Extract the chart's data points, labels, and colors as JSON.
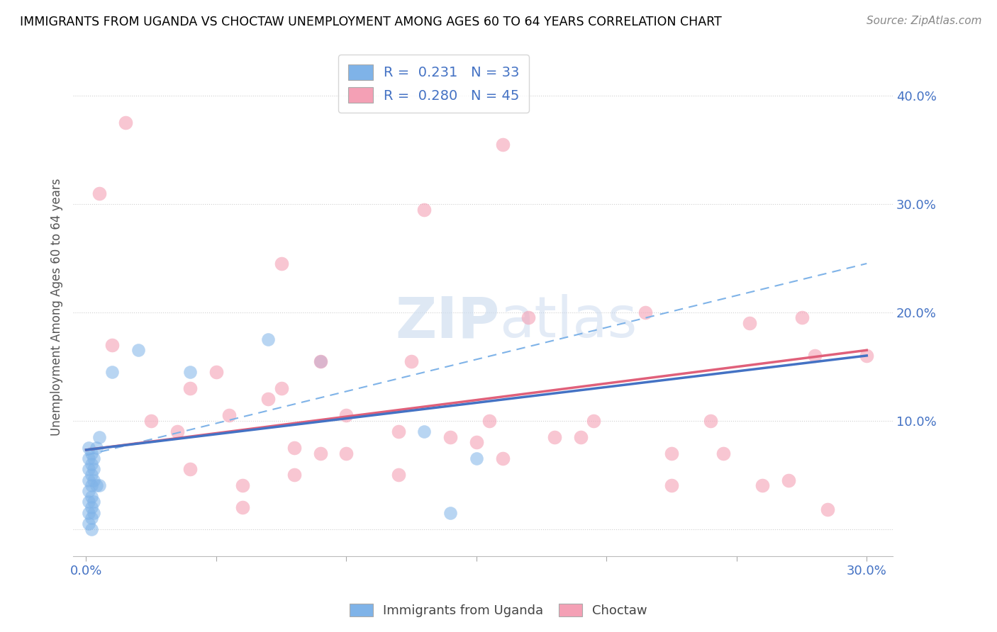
{
  "title": "IMMIGRANTS FROM UGANDA VS CHOCTAW UNEMPLOYMENT AMONG AGES 60 TO 64 YEARS CORRELATION CHART",
  "source": "Source: ZipAtlas.com",
  "ylabel": "Unemployment Among Ages 60 to 64 years",
  "xlim": [
    -0.005,
    0.31
  ],
  "ylim": [
    -0.025,
    0.435
  ],
  "xticks": [
    0.0,
    0.05,
    0.1,
    0.15,
    0.2,
    0.25,
    0.3
  ],
  "xticklabels": [
    "0.0%",
    "",
    "",
    "",
    "",
    "",
    "30.0%"
  ],
  "ytick_positions": [
    0.0,
    0.1,
    0.2,
    0.3,
    0.4
  ],
  "yticklabels_right": [
    "",
    "10.0%",
    "20.0%",
    "30.0%",
    "40.0%"
  ],
  "uganda_color": "#7fb3e8",
  "choctaw_color": "#f4a0b5",
  "uganda_line_color": "#4472c4",
  "choctaw_line_color": "#e0607a",
  "dashed_line_color": "#7fb3e8",
  "uganda_R": 0.231,
  "uganda_N": 33,
  "choctaw_R": 0.28,
  "choctaw_N": 45,
  "uganda_points": [
    [
      0.001,
      0.075
    ],
    [
      0.001,
      0.065
    ],
    [
      0.001,
      0.055
    ],
    [
      0.001,
      0.045
    ],
    [
      0.001,
      0.035
    ],
    [
      0.001,
      0.025
    ],
    [
      0.001,
      0.015
    ],
    [
      0.001,
      0.005
    ],
    [
      0.002,
      0.07
    ],
    [
      0.002,
      0.06
    ],
    [
      0.002,
      0.05
    ],
    [
      0.002,
      0.04
    ],
    [
      0.002,
      0.03
    ],
    [
      0.002,
      0.02
    ],
    [
      0.002,
      0.01
    ],
    [
      0.002,
      0.0
    ],
    [
      0.003,
      0.065
    ],
    [
      0.003,
      0.055
    ],
    [
      0.003,
      0.045
    ],
    [
      0.003,
      0.025
    ],
    [
      0.003,
      0.015
    ],
    [
      0.004,
      0.075
    ],
    [
      0.004,
      0.04
    ],
    [
      0.005,
      0.085
    ],
    [
      0.005,
      0.04
    ],
    [
      0.01,
      0.145
    ],
    [
      0.02,
      0.165
    ],
    [
      0.04,
      0.145
    ],
    [
      0.07,
      0.175
    ],
    [
      0.09,
      0.155
    ],
    [
      0.13,
      0.09
    ],
    [
      0.14,
      0.015
    ],
    [
      0.15,
      0.065
    ]
  ],
  "choctaw_points": [
    [
      0.015,
      0.375
    ],
    [
      0.16,
      0.355
    ],
    [
      0.005,
      0.31
    ],
    [
      0.13,
      0.295
    ],
    [
      0.075,
      0.245
    ],
    [
      0.17,
      0.195
    ],
    [
      0.215,
      0.2
    ],
    [
      0.275,
      0.195
    ],
    [
      0.255,
      0.19
    ],
    [
      0.01,
      0.17
    ],
    [
      0.09,
      0.155
    ],
    [
      0.125,
      0.155
    ],
    [
      0.04,
      0.13
    ],
    [
      0.05,
      0.145
    ],
    [
      0.075,
      0.13
    ],
    [
      0.07,
      0.12
    ],
    [
      0.055,
      0.105
    ],
    [
      0.1,
      0.105
    ],
    [
      0.155,
      0.1
    ],
    [
      0.195,
      0.1
    ],
    [
      0.24,
      0.1
    ],
    [
      0.12,
      0.09
    ],
    [
      0.14,
      0.085
    ],
    [
      0.18,
      0.085
    ],
    [
      0.08,
      0.075
    ],
    [
      0.09,
      0.07
    ],
    [
      0.1,
      0.07
    ],
    [
      0.225,
      0.07
    ],
    [
      0.16,
      0.065
    ],
    [
      0.04,
      0.055
    ],
    [
      0.08,
      0.05
    ],
    [
      0.12,
      0.05
    ],
    [
      0.06,
      0.04
    ],
    [
      0.225,
      0.04
    ],
    [
      0.26,
      0.04
    ],
    [
      0.28,
      0.16
    ],
    [
      0.3,
      0.16
    ],
    [
      0.025,
      0.1
    ],
    [
      0.035,
      0.09
    ],
    [
      0.15,
      0.08
    ],
    [
      0.19,
      0.085
    ],
    [
      0.245,
      0.07
    ],
    [
      0.27,
      0.045
    ],
    [
      0.285,
      0.018
    ],
    [
      0.06,
      0.02
    ]
  ],
  "uganda_trend_x": [
    0.0,
    0.3
  ],
  "uganda_trend_y": [
    0.073,
    0.16
  ],
  "choctaw_trend_x": [
    0.0,
    0.3
  ],
  "choctaw_trend_y": [
    0.073,
    0.165
  ],
  "dashed_trend_x": [
    0.0,
    0.3
  ],
  "dashed_trend_y": [
    0.068,
    0.245
  ],
  "watermark_zip": "ZIP",
  "watermark_atlas": "atlas",
  "background_color": "#ffffff",
  "grid_color": "#d0d0d0",
  "title_color": "#000000",
  "axis_label_color": "#555555",
  "tick_label_color": "#4472c4",
  "grid_linestyle": "dotted"
}
